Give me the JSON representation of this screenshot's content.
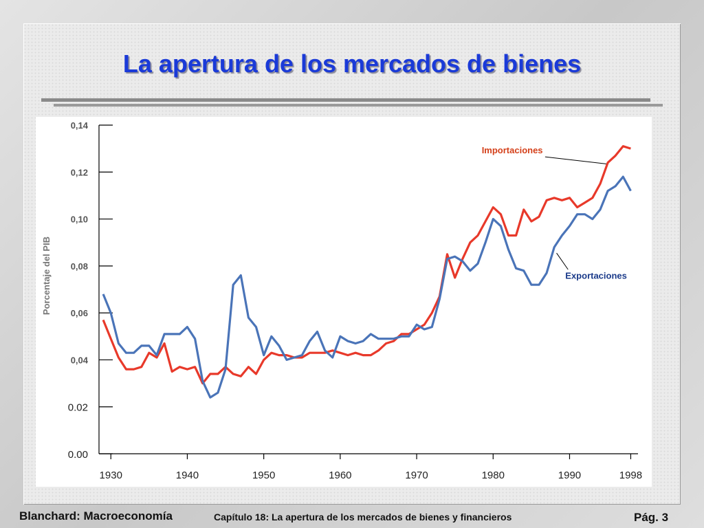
{
  "slide": {
    "title": "La apertura de los mercados de bienes",
    "footer_left": "Blanchard: Macroeconomía",
    "footer_mid": "Capítulo 18:  La apertura de los mercados de bienes y financieros",
    "footer_right": "Pág. 3"
  },
  "colors": {
    "title": "#1a3ad8",
    "importaciones": "#e8392a",
    "exportaciones": "#4a74b8"
  },
  "chart_data": {
    "type": "line",
    "title": "",
    "xlabel": "",
    "ylabel": "Porcentaje del PIB",
    "xlim": [
      1928,
      1998.5
    ],
    "ylim": [
      0,
      0.14
    ],
    "x_ticks": [
      "1930",
      "1940",
      "1950",
      "1960",
      "1970",
      "1980",
      "1990",
      "1998"
    ],
    "x_tick_values": [
      1930,
      1940,
      1950,
      1960,
      1970,
      1980,
      1990,
      1998
    ],
    "y_ticks": [
      "0.00",
      "0.02",
      "0,04",
      "0,06",
      "0,08",
      "0,10",
      "0,12",
      "0,14"
    ],
    "y_tick_values": [
      0,
      0.02,
      0.04,
      0.06,
      0.08,
      0.1,
      0.12,
      0.14
    ],
    "grid": false,
    "x": [
      1929,
      1930,
      1931,
      1932,
      1933,
      1934,
      1935,
      1936,
      1937,
      1938,
      1939,
      1940,
      1941,
      1942,
      1943,
      1944,
      1945,
      1946,
      1947,
      1948,
      1949,
      1950,
      1951,
      1952,
      1953,
      1954,
      1955,
      1956,
      1957,
      1958,
      1959,
      1960,
      1961,
      1962,
      1963,
      1964,
      1965,
      1966,
      1967,
      1968,
      1969,
      1970,
      1971,
      1972,
      1973,
      1974,
      1975,
      1976,
      1977,
      1978,
      1979,
      1980,
      1981,
      1982,
      1983,
      1984,
      1985,
      1986,
      1987,
      1988,
      1989,
      1990,
      1991,
      1992,
      1993,
      1994,
      1995,
      1996,
      1997,
      1998
    ],
    "series": [
      {
        "name": "Importaciones",
        "values": [
          0.057,
          0.049,
          0.041,
          0.036,
          0.036,
          0.037,
          0.043,
          0.041,
          0.047,
          0.035,
          0.037,
          0.036,
          0.037,
          0.03,
          0.034,
          0.034,
          0.037,
          0.034,
          0.033,
          0.037,
          0.034,
          0.04,
          0.043,
          0.042,
          0.042,
          0.041,
          0.041,
          0.043,
          0.043,
          0.043,
          0.044,
          0.043,
          0.042,
          0.043,
          0.042,
          0.042,
          0.044,
          0.047,
          0.048,
          0.051,
          0.051,
          0.053,
          0.055,
          0.06,
          0.067,
          0.085,
          0.075,
          0.083,
          0.09,
          0.093,
          0.099,
          0.105,
          0.102,
          0.093,
          0.093,
          0.104,
          0.099,
          0.101,
          0.108,
          0.109,
          0.108,
          0.109,
          0.105,
          0.107,
          0.109,
          0.115,
          0.124,
          0.127,
          0.131,
          0.13
        ]
      },
      {
        "name": "Exportaciones",
        "values": [
          0.068,
          0.06,
          0.047,
          0.043,
          0.043,
          0.046,
          0.046,
          0.042,
          0.051,
          0.051,
          0.051,
          0.054,
          0.049,
          0.031,
          0.024,
          0.026,
          0.036,
          0.072,
          0.076,
          0.058,
          0.054,
          0.042,
          0.05,
          0.046,
          0.04,
          0.041,
          0.042,
          0.048,
          0.052,
          0.044,
          0.041,
          0.05,
          0.048,
          0.047,
          0.048,
          0.051,
          0.049,
          0.049,
          0.049,
          0.05,
          0.05,
          0.055,
          0.053,
          0.054,
          0.066,
          0.083,
          0.084,
          0.082,
          0.078,
          0.081,
          0.09,
          0.1,
          0.097,
          0.087,
          0.079,
          0.078,
          0.072,
          0.072,
          0.077,
          0.088,
          0.093,
          0.097,
          0.102,
          0.102,
          0.1,
          0.104,
          0.112,
          0.114,
          0.118,
          0.112
        ]
      }
    ],
    "annotations": [
      {
        "text": "Importaciones",
        "series": "Importaciones"
      },
      {
        "text": "Exportaciones",
        "series": "Exportaciones"
      }
    ]
  }
}
